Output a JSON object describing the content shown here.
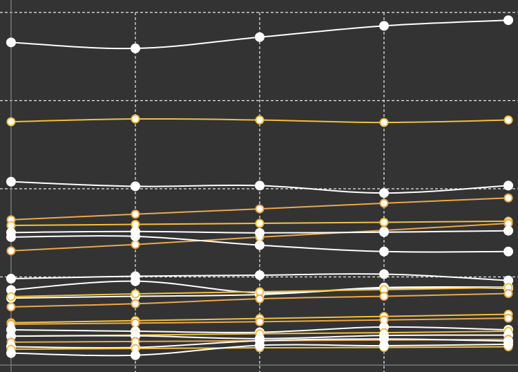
{
  "chart_data": {
    "type": "line",
    "title": "",
    "xlabel": "",
    "ylabel": "",
    "x": [
      0,
      1,
      2,
      3,
      4
    ],
    "ylim": [
      0,
      1
    ],
    "grid": true,
    "legend": "none",
    "colors": {
      "background": "#333333",
      "grid": "#ffffff",
      "axis": "#777777",
      "white_series": "#ffffff",
      "gold_series": "#f2c03e",
      "orange_series": "#eca84b",
      "marker_fill": "#ffffff"
    },
    "series": [
      {
        "color": "white_series",
        "values": [
          0.915,
          0.898,
          0.93,
          0.962,
          0.978
        ]
      },
      {
        "color": "gold_series",
        "values": [
          0.69,
          0.698,
          0.695,
          0.688,
          0.695
        ]
      },
      {
        "color": "white_series",
        "values": [
          0.52,
          0.507,
          0.509,
          0.488,
          0.509
        ]
      },
      {
        "color": "orange_series",
        "values": [
          0.412,
          0.428,
          0.443,
          0.459,
          0.474
        ]
      },
      {
        "color": "gold_series",
        "values": [
          0.396,
          0.399,
          0.402,
          0.405,
          0.408
        ]
      },
      {
        "color": "orange_series",
        "values": [
          0.324,
          0.342,
          0.363,
          0.382,
          0.402
        ]
      },
      {
        "color": "white_series",
        "values": [
          0.376,
          0.379,
          0.375,
          0.377,
          0.381
        ]
      },
      {
        "color": "white_series",
        "values": [
          0.363,
          0.365,
          0.34,
          0.322,
          0.322
        ]
      },
      {
        "color": "white_series",
        "values": [
          0.245,
          0.252,
          0.255,
          0.258,
          0.24
        ]
      },
      {
        "color": "white_series",
        "values": [
          0.213,
          0.238,
          0.205,
          0.22,
          0.221
        ]
      },
      {
        "color": "white_series",
        "values": [
          0.19,
          0.195,
          0.2,
          0.218,
          0.218
        ]
      },
      {
        "color": "gold_series",
        "values": [
          0.194,
          0.202,
          0.208,
          0.214,
          0.22
        ]
      },
      {
        "color": "orange_series",
        "values": [
          0.165,
          0.174,
          0.188,
          0.195,
          0.203
        ]
      },
      {
        "color": "gold_series",
        "values": [
          0.12,
          0.126,
          0.132,
          0.138,
          0.144
        ]
      },
      {
        "color": "orange_series",
        "values": [
          0.116,
          0.119,
          0.123,
          0.128,
          0.133
        ]
      },
      {
        "color": "white_series",
        "values": [
          0.1,
          0.096,
          0.093,
          0.108,
          0.1
        ]
      },
      {
        "color": "gold_series",
        "values": [
          0.082,
          0.085,
          0.089,
          0.092,
          0.096
        ]
      },
      {
        "color": "white_series",
        "values": [
          0.082,
          0.083,
          0.075,
          0.084,
          0.085
        ]
      },
      {
        "color": "orange_series",
        "values": [
          0.065,
          0.067,
          0.069,
          0.071,
          0.073
        ]
      },
      {
        "color": "white_series",
        "values": [
          0.052,
          0.05,
          0.069,
          0.074,
          0.068
        ]
      },
      {
        "color": "gold_series",
        "values": [
          0.045,
          0.047,
          0.049,
          0.05,
          0.052
        ]
      },
      {
        "color": "white_series",
        "values": [
          0.034,
          0.028,
          0.056,
          0.055,
          0.059
        ]
      }
    ]
  }
}
